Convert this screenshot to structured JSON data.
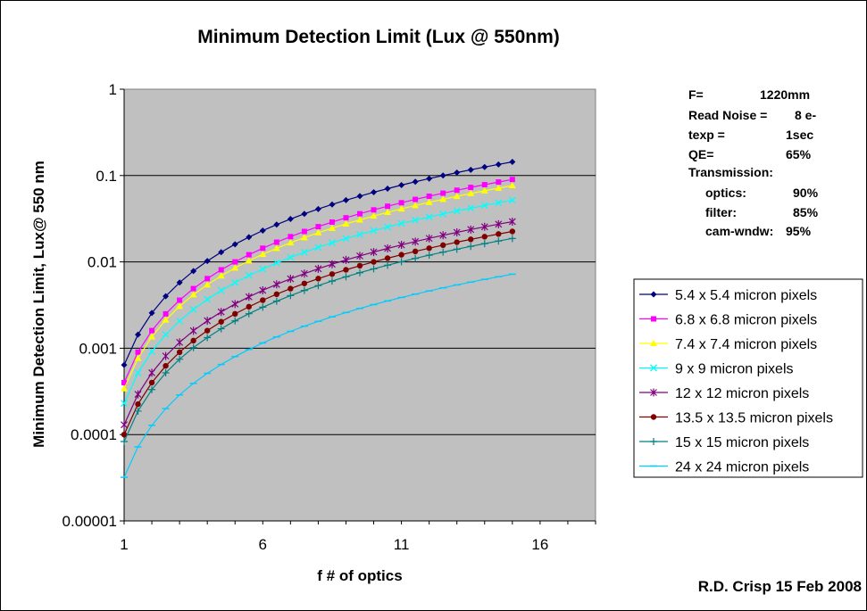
{
  "chart_data": {
    "type": "line",
    "title": "Minimum Detection Limit (Lux @ 550nm)",
    "xlabel": "f # of optics",
    "ylabel": "Minimum Detection Limit, Lux@ 550 nm",
    "xlim": [
      1,
      18
    ],
    "ylim": [
      1e-05,
      1
    ],
    "yscale": "log",
    "grid": "horizontal major gridlines",
    "legend_position": "right",
    "x_ticks": [
      1,
      6,
      11,
      16
    ],
    "x_tick_labels": [
      "1",
      "6",
      "11",
      "16"
    ],
    "y_ticks": [
      1e-05,
      0.0001,
      0.001,
      0.01,
      0.1,
      1
    ],
    "y_tick_labels": [
      "0.00001",
      "0.0001",
      "0.001",
      "0.01",
      "0.1",
      "1"
    ],
    "x": [
      1,
      1.5,
      2,
      2.5,
      3,
      3.5,
      4,
      4.5,
      5,
      5.5,
      6,
      6.5,
      7,
      7.5,
      8,
      8.5,
      9,
      9.5,
      10,
      10.5,
      11,
      11.5,
      12,
      12.5,
      13,
      13.5,
      14,
      14.5,
      15
    ],
    "series": [
      {
        "name": "5.4 x 5.4 micron pixels",
        "color": "#000080",
        "marker": "diamond",
        "base": 0.00064
      },
      {
        "name": "6.8 x 6.8 micron pixels",
        "color": "#ff00ff",
        "marker": "square",
        "base": 0.0004
      },
      {
        "name": "7.4 x 7.4 micron pixels",
        "color": "#ffff00",
        "marker": "triangle",
        "base": 0.00034
      },
      {
        "name": " 9 x 9 micron pixels",
        "color": "#00ffff",
        "marker": "x",
        "base": 0.00023
      },
      {
        "name": "12 x 12 micron pixels",
        "color": "#800080",
        "marker": "star",
        "base": 0.00013
      },
      {
        "name": "13.5 x 13.5 micron pixels",
        "color": "#800000",
        "marker": "circle",
        "base": 0.0001
      },
      {
        "name": "15 x 15 micron pixels",
        "color": "#008080",
        "marker": "plus",
        "base": 8.3e-05
      },
      {
        "name": "24 x 24 micron pixels",
        "color": "#00ccff",
        "marker": "dash",
        "base": 3.2e-05
      }
    ],
    "y_rule": "y = base * x^2",
    "info_box": [
      {
        "label": "F=",
        "value": "1220mm"
      },
      {
        "label": "Read Noise =",
        "value": "8 e-"
      },
      {
        "label": "texp =",
        "value": "1sec"
      },
      {
        "label": "QE=",
        "value": "65%"
      },
      {
        "label": "Transmission:",
        "value": ""
      },
      {
        "label": "optics:",
        "value": "90%"
      },
      {
        "label": "filter:",
        "value": "85%"
      },
      {
        "label": "cam-wndw:",
        "value": "95%"
      }
    ],
    "credit": "R.D. Crisp 15 Feb 2008"
  }
}
